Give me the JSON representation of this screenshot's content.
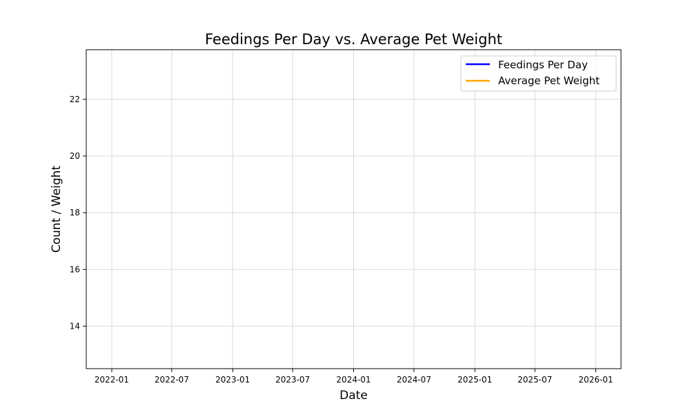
{
  "chart_data": {
    "type": "line",
    "title": "Feedings Per Day vs. Average Pet Weight",
    "xlabel": "Date",
    "ylabel": "Count / Weight",
    "x_ticks": [
      "2022-01",
      "2022-07",
      "2023-01",
      "2023-07",
      "2024-01",
      "2024-07",
      "2025-01",
      "2025-07",
      "2026-01"
    ],
    "y_ticks": [
      "14",
      "16",
      "18",
      "20",
      "22"
    ],
    "xlim": [
      "2021-10-16",
      "2026-03-18"
    ],
    "ylim": [
      12.5,
      23.75
    ],
    "grid": true,
    "legend_position": "top-right",
    "series": [
      {
        "name": "Feedings Per Day",
        "color": "#0000ff",
        "x": [],
        "values": []
      },
      {
        "name": "Average Pet Weight",
        "color": "#ffa500",
        "x": [],
        "values": []
      }
    ]
  }
}
